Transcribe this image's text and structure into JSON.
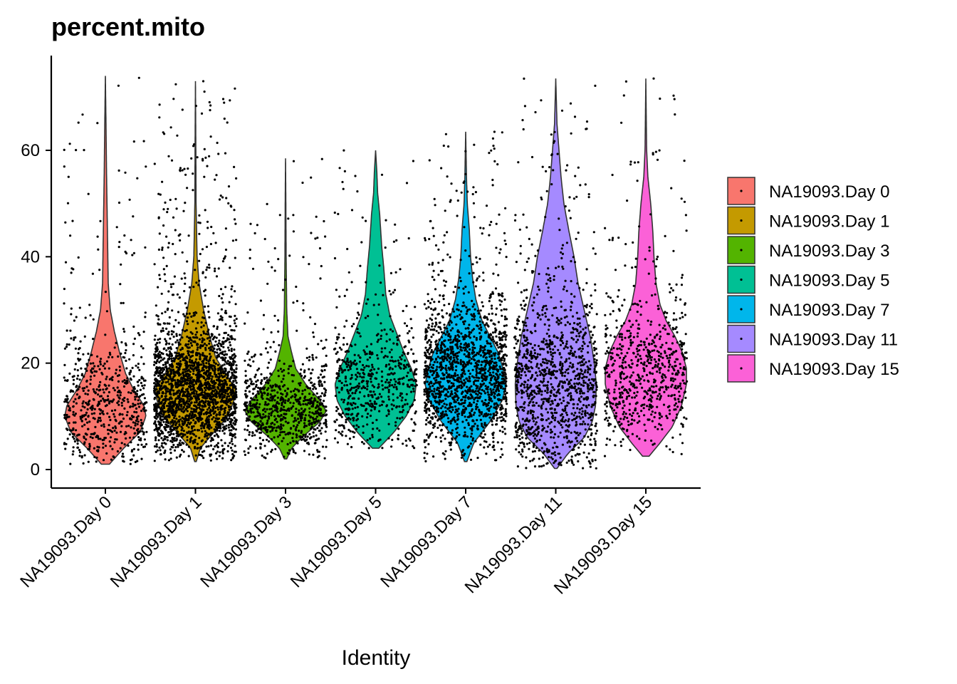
{
  "chart_data": {
    "type": "violin",
    "title": "percent.mito",
    "xlabel": "Identity",
    "ylabel": "",
    "ylim": [
      -3.5,
      78
    ],
    "yticks": [
      0,
      20,
      40,
      60
    ],
    "grid": false,
    "legend": "right",
    "categories": [
      "NA19093.Day 0",
      "NA19093.Day 1",
      "NA19093.Day 3",
      "NA19093.Day 5",
      "NA19093.Day 7",
      "NA19093.Day 11",
      "NA19093.Day 15"
    ],
    "colors": [
      "#F8766D",
      "#C49A00",
      "#53B400",
      "#00C094",
      "#00B6EB",
      "#A58AFF",
      "#FB61D7"
    ],
    "series": [
      {
        "name": "NA19093.Day 0",
        "color": "#F8766D",
        "min": 1,
        "max": 74,
        "median": 11.5,
        "spread": 6.5,
        "n": 650,
        "shape": [
          [
            1,
            0.1
          ],
          [
            4,
            0.45
          ],
          [
            7,
            0.85
          ],
          [
            10,
            1.0
          ],
          [
            12,
            0.95
          ],
          [
            15,
            0.7
          ],
          [
            18,
            0.5
          ],
          [
            22,
            0.35
          ],
          [
            26,
            0.22
          ],
          [
            30,
            0.12
          ],
          [
            35,
            0.07
          ],
          [
            45,
            0.05
          ],
          [
            55,
            0.03
          ],
          [
            65,
            0.015
          ],
          [
            74,
            0.0
          ]
        ]
      },
      {
        "name": "NA19093.Day 1",
        "color": "#C49A00",
        "min": 1.5,
        "max": 73,
        "median": 14,
        "spread": 6.5,
        "n": 2300,
        "shape": [
          [
            1.5,
            0.02
          ],
          [
            4,
            0.12
          ],
          [
            7,
            0.45
          ],
          [
            10,
            0.8
          ],
          [
            13,
            0.95
          ],
          [
            15,
            1.0
          ],
          [
            18,
            0.75
          ],
          [
            21,
            0.5
          ],
          [
            25,
            0.35
          ],
          [
            30,
            0.2
          ],
          [
            35,
            0.09
          ],
          [
            40,
            0.04
          ],
          [
            50,
            0.015
          ],
          [
            60,
            0.01
          ],
          [
            73,
            0.0
          ]
        ]
      },
      {
        "name": "NA19093.Day 3",
        "color": "#53B400",
        "min": 2,
        "max": 58.5,
        "median": 11,
        "spread": 4.5,
        "n": 800,
        "shape": [
          [
            2,
            0.03
          ],
          [
            4,
            0.15
          ],
          [
            6,
            0.4
          ],
          [
            9,
            0.85
          ],
          [
            11,
            1.0
          ],
          [
            13,
            0.85
          ],
          [
            16,
            0.5
          ],
          [
            19,
            0.25
          ],
          [
            22,
            0.15
          ],
          [
            25,
            0.06
          ],
          [
            30,
            0.03
          ],
          [
            40,
            0.015
          ],
          [
            50,
            0.008
          ],
          [
            58.5,
            0.0
          ]
        ]
      },
      {
        "name": "NA19093.Day 5",
        "color": "#00C094",
        "min": 4,
        "max": 60,
        "median": 15.5,
        "spread": 6.5,
        "n": 600,
        "shape": [
          [
            4,
            0.08
          ],
          [
            7,
            0.45
          ],
          [
            10,
            0.75
          ],
          [
            13,
            0.95
          ],
          [
            16,
            1.0
          ],
          [
            19,
            0.88
          ],
          [
            22,
            0.7
          ],
          [
            25,
            0.55
          ],
          [
            29,
            0.35
          ],
          [
            33,
            0.25
          ],
          [
            38,
            0.2
          ],
          [
            42,
            0.15
          ],
          [
            48,
            0.1
          ],
          [
            52,
            0.05
          ],
          [
            56,
            0.03
          ],
          [
            60,
            0.0
          ]
        ]
      },
      {
        "name": "NA19093.Day 7",
        "color": "#00B6EB",
        "min": 1.5,
        "max": 63.5,
        "median": 17,
        "spread": 7,
        "n": 1600,
        "shape": [
          [
            1.5,
            0.03
          ],
          [
            5,
            0.2
          ],
          [
            9,
            0.6
          ],
          [
            13,
            0.9
          ],
          [
            16,
            1.0
          ],
          [
            19,
            0.92
          ],
          [
            22,
            0.8
          ],
          [
            25,
            0.6
          ],
          [
            28,
            0.4
          ],
          [
            32,
            0.25
          ],
          [
            36,
            0.17
          ],
          [
            40,
            0.12
          ],
          [
            45,
            0.09
          ],
          [
            50,
            0.04
          ],
          [
            55,
            0.02
          ],
          [
            63.5,
            0.0
          ]
        ]
      },
      {
        "name": "NA19093.Day 11",
        "color": "#A58AFF",
        "min": 0.2,
        "max": 73.5,
        "median": 15,
        "spread": 9,
        "n": 1200,
        "shape": [
          [
            0.2,
            0.03
          ],
          [
            3,
            0.3
          ],
          [
            6,
            0.7
          ],
          [
            9,
            0.9
          ],
          [
            12,
            0.98
          ],
          [
            16,
            1.0
          ],
          [
            20,
            0.95
          ],
          [
            25,
            0.85
          ],
          [
            30,
            0.7
          ],
          [
            35,
            0.55
          ],
          [
            40,
            0.45
          ],
          [
            45,
            0.32
          ],
          [
            50,
            0.2
          ],
          [
            55,
            0.13
          ],
          [
            60,
            0.08
          ],
          [
            65,
            0.03
          ],
          [
            73.5,
            0.0
          ]
        ]
      },
      {
        "name": "NA19093.Day 15",
        "color": "#FB61D7",
        "min": 2.5,
        "max": 73.5,
        "median": 17,
        "spread": 7.5,
        "n": 700,
        "shape": [
          [
            2.5,
            0.08
          ],
          [
            5,
            0.35
          ],
          [
            8,
            0.65
          ],
          [
            12,
            0.88
          ],
          [
            16,
            1.0
          ],
          [
            19,
            1.0
          ],
          [
            22,
            0.9
          ],
          [
            25,
            0.72
          ],
          [
            28,
            0.5
          ],
          [
            31,
            0.35
          ],
          [
            35,
            0.25
          ],
          [
            40,
            0.2
          ],
          [
            45,
            0.17
          ],
          [
            50,
            0.12
          ],
          [
            55,
            0.05
          ],
          [
            60,
            0.02
          ],
          [
            73.5,
            0.0
          ]
        ]
      }
    ]
  }
}
